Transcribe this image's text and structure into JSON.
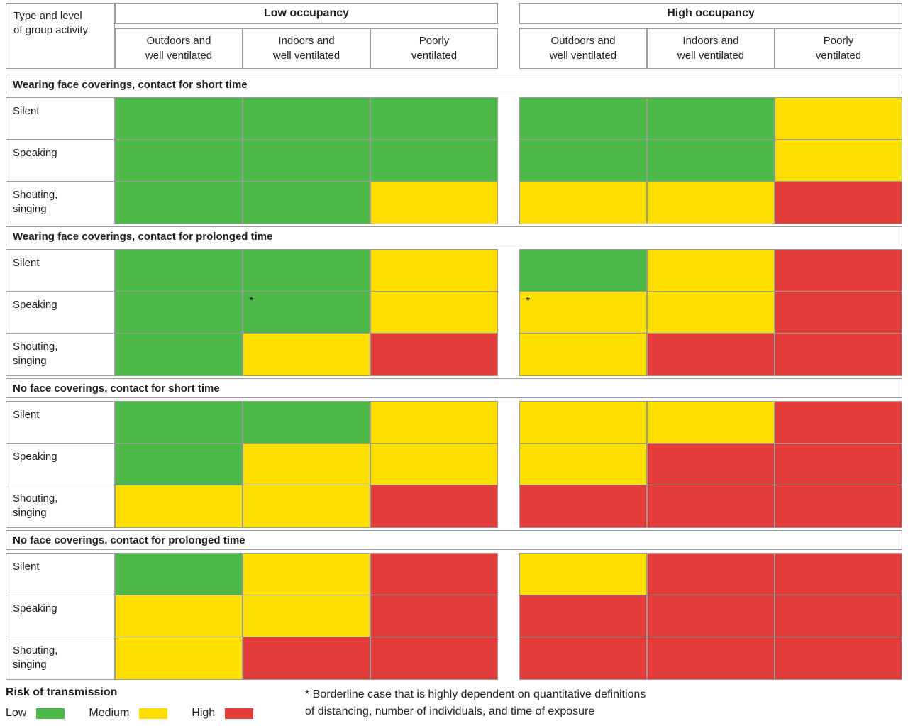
{
  "chart_data": {
    "type": "heatmap",
    "corner_label": "Type and level\nof group activity",
    "column_groups": [
      "Low occupancy",
      "High occupancy"
    ],
    "columns": [
      "Outdoors and\nwell ventilated",
      "Indoors and\nwell ventilated",
      "Poorly\nventilated"
    ],
    "levels": {
      "low": "#4cb848",
      "medium": "#ffdf00",
      "high": "#e23d3a"
    },
    "sections": [
      {
        "title": "Wearing face coverings, contact for short time",
        "rows": [
          {
            "label": "Silent",
            "values": [
              "low",
              "low",
              "low",
              "low",
              "low",
              "medium"
            ]
          },
          {
            "label": "Speaking",
            "values": [
              "low",
              "low",
              "low",
              "low",
              "low",
              "medium"
            ]
          },
          {
            "label": "Shouting,\nsinging",
            "values": [
              "low",
              "low",
              "medium",
              "medium",
              "medium",
              "high"
            ]
          }
        ]
      },
      {
        "title": "Wearing face coverings, contact for prolonged time",
        "rows": [
          {
            "label": "Silent",
            "values": [
              "low",
              "low",
              "medium",
              "low",
              "medium",
              "high"
            ]
          },
          {
            "label": "Speaking",
            "values": [
              "low",
              "low*",
              "medium",
              "medium*",
              "medium",
              "high"
            ]
          },
          {
            "label": "Shouting,\nsinging",
            "values": [
              "low",
              "medium",
              "high",
              "medium",
              "high",
              "high"
            ]
          }
        ]
      },
      {
        "title": "No face coverings, contact for short time",
        "rows": [
          {
            "label": "Silent",
            "values": [
              "low",
              "low",
              "medium",
              "medium",
              "medium",
              "high"
            ]
          },
          {
            "label": "Speaking",
            "values": [
              "low",
              "medium",
              "medium",
              "medium",
              "high",
              "high"
            ]
          },
          {
            "label": "Shouting,\nsinging",
            "values": [
              "medium",
              "medium",
              "high",
              "high",
              "high",
              "high"
            ]
          }
        ]
      },
      {
        "title": "No face coverings, contact for prolonged time",
        "rows": [
          {
            "label": "Silent",
            "values": [
              "low",
              "medium",
              "high",
              "medium",
              "high",
              "high"
            ]
          },
          {
            "label": "Speaking",
            "values": [
              "medium",
              "medium",
              "high",
              "high",
              "high",
              "high"
            ]
          },
          {
            "label": "Shouting,\nsinging",
            "values": [
              "medium",
              "high",
              "high",
              "high",
              "high",
              "high"
            ]
          }
        ]
      }
    ]
  },
  "legend": {
    "title": "Risk of transmission",
    "items": [
      {
        "label": "Low",
        "level": "low"
      },
      {
        "label": "Medium",
        "level": "medium"
      },
      {
        "label": "High",
        "level": "high"
      }
    ]
  },
  "footnote": "* Borderline case that is highly dependent on quantitative definitions\nof distancing, number of individuals, and time of exposure"
}
